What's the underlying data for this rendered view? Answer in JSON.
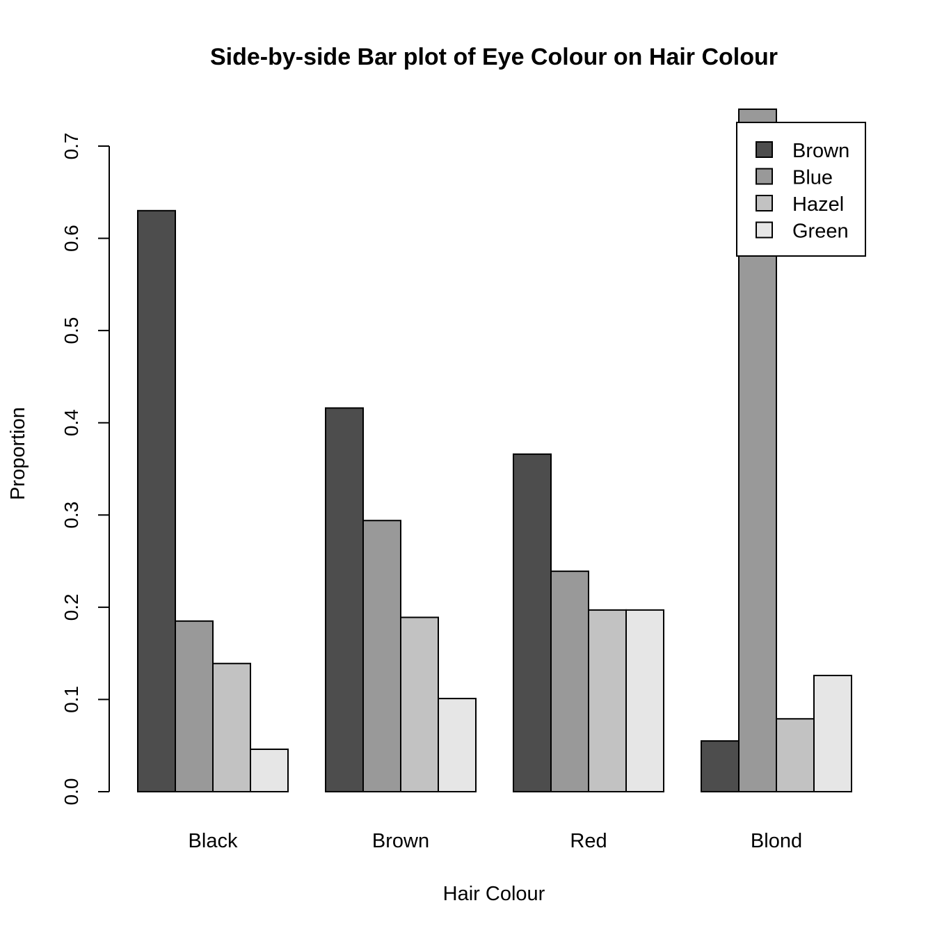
{
  "chart_data": {
    "type": "bar",
    "layout": "grouped",
    "title": "Side-by-side Bar plot of Eye Colour on Hair Colour",
    "xlabel": "Hair Colour",
    "ylabel": "Proportion",
    "categories": [
      "Black",
      "Brown",
      "Red",
      "Blond"
    ],
    "series": [
      {
        "name": "Brown",
        "color": "#4d4d4d",
        "values": [
          0.63,
          0.416,
          0.366,
          0.055
        ]
      },
      {
        "name": "Blue",
        "color": "#999999",
        "values": [
          0.185,
          0.294,
          0.239,
          0.74
        ]
      },
      {
        "name": "Hazel",
        "color": "#c2c2c2",
        "values": [
          0.139,
          0.189,
          0.197,
          0.079
        ]
      },
      {
        "name": "Green",
        "color": "#e6e6e6",
        "values": [
          0.046,
          0.101,
          0.197,
          0.126
        ]
      }
    ],
    "ylim": [
      0,
      0.7
    ],
    "yticks": [
      "0.0",
      "0.1",
      "0.2",
      "0.3",
      "0.4",
      "0.5",
      "0.6",
      "0.7"
    ],
    "ytick_values": [
      0,
      0.1,
      0.2,
      0.3,
      0.4,
      0.5,
      0.6,
      0.7
    ],
    "grid": false,
    "legend_position": "top-right"
  }
}
